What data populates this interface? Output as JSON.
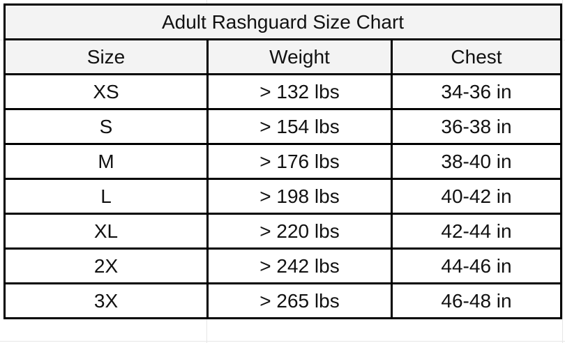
{
  "title": "Adult Rashguard Size Chart",
  "columns": [
    "Size",
    "Weight",
    "Chest"
  ],
  "rows": [
    [
      "XS",
      "> 132 lbs",
      "34-36 in"
    ],
    [
      "S",
      "> 154 lbs",
      "36-38 in"
    ],
    [
      "M",
      "> 176 lbs",
      "38-40 in"
    ],
    [
      "L",
      "> 198 lbs",
      "40-42 in"
    ],
    [
      "XL",
      "> 220 lbs",
      "42-44 in"
    ],
    [
      "2X",
      "> 242 lbs",
      "44-46 in"
    ],
    [
      "3X",
      "> 265 lbs",
      "46-48 in"
    ]
  ]
}
